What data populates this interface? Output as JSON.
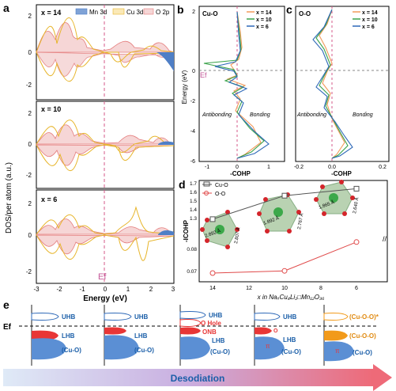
{
  "panel_letters": {
    "a": "a",
    "b": "b",
    "c": "c",
    "d": "d",
    "e": "e"
  },
  "panel_a": {
    "ylabel": "DOS/per atom (a.u.)",
    "xlabel": "Energy (eV)",
    "ef_label": "Ef",
    "legend": [
      "Mn 3d",
      "Cu 3d",
      "O 2p"
    ],
    "colors": {
      "mn": "#4f7fc6",
      "cu": "#f2c23a",
      "o": "#e8838c"
    },
    "subpanels": [
      {
        "label": "x = 14",
        "yticks": [
          "2",
          "0",
          "-2"
        ]
      },
      {
        "label": "x = 10",
        "yticks": [
          "2",
          "0",
          "-2"
        ]
      },
      {
        "label": "x = 6",
        "yticks": [
          "2",
          "0",
          "-2"
        ]
      }
    ],
    "xticks": [
      "-3",
      "-2",
      "-1",
      "0",
      "1",
      "2",
      "3"
    ]
  },
  "panel_b": {
    "title": "Cu-O",
    "ylabel": "Energy (eV)",
    "xlabel": "-COHP",
    "ef": "Ef",
    "antibonding": "Antibonding",
    "bonding": "Bonding",
    "legend": [
      "x = 14",
      "x = 10",
      "x = 6"
    ],
    "yticks": [
      "2",
      "0",
      "-2",
      "-4",
      "-6"
    ],
    "xticks": [
      "-1",
      "0",
      "1"
    ]
  },
  "panel_c": {
    "title": "O-O",
    "xlabel": "-COHP",
    "antibonding": "Antibonding",
    "bonding": "Bonding",
    "legend": [
      "x = 14",
      "x = 10",
      "x = 6"
    ],
    "xticks": [
      "-0.2",
      "0.0",
      "0.2"
    ]
  },
  "panel_d": {
    "ylabel": "-ICOHP",
    "xlabel": "x in NaₓCu₄Li₂□Mn₁₂O₃₆",
    "legend": [
      "Cu-O",
      "O-O"
    ],
    "yticks": [
      "1.7",
      "1.6",
      "1.5",
      "1.4",
      "1.3",
      "0.08",
      "0.07"
    ],
    "xticks": [
      "14",
      "12",
      "10",
      "8",
      "6"
    ],
    "bond_labels": [
      "2.892 Å",
      "2.807 Å",
      "1.892 Å",
      "2.767 Å",
      "1.865 Å",
      "2.640 Å"
    ]
  },
  "chart_data": [
    {
      "type": "line",
      "title": "",
      "xlabel": "x in NaₓCu₄Li₂□Mn₁₂O₃₆",
      "ylabel": "-ICOHP",
      "x": [
        14,
        10,
        6
      ],
      "series": [
        {
          "name": "Cu-O",
          "values": [
            1.31,
            1.58,
            1.66
          ]
        },
        {
          "name": "O-O",
          "values": [
            0.07,
            0.071,
            0.084
          ]
        }
      ]
    }
  ],
  "panel_e": {
    "ef": "Ef",
    "arrow": "Desodiation",
    "stages": [
      {
        "uhb": "UHB",
        "lhb": "LHB",
        "base": "(Cu-O)"
      },
      {
        "uhb": "UHB",
        "lhb": "LHB",
        "base": "(Cu-O)"
      },
      {
        "uhb": "UHB",
        "hole": "O Hole",
        "onb": "ONB",
        "lhb": "LHB",
        "base": "(Cu-O)"
      },
      {
        "uhb": "UHB",
        "o": "O",
        "lhb": "LHB",
        "base": "(Cu-O)",
        "pi": "π"
      },
      {
        "top": "(Cu-O-O)*",
        "mid": "(Cu-O-O)",
        "base": "(Cu-O)",
        "pi": "π"
      }
    ]
  }
}
